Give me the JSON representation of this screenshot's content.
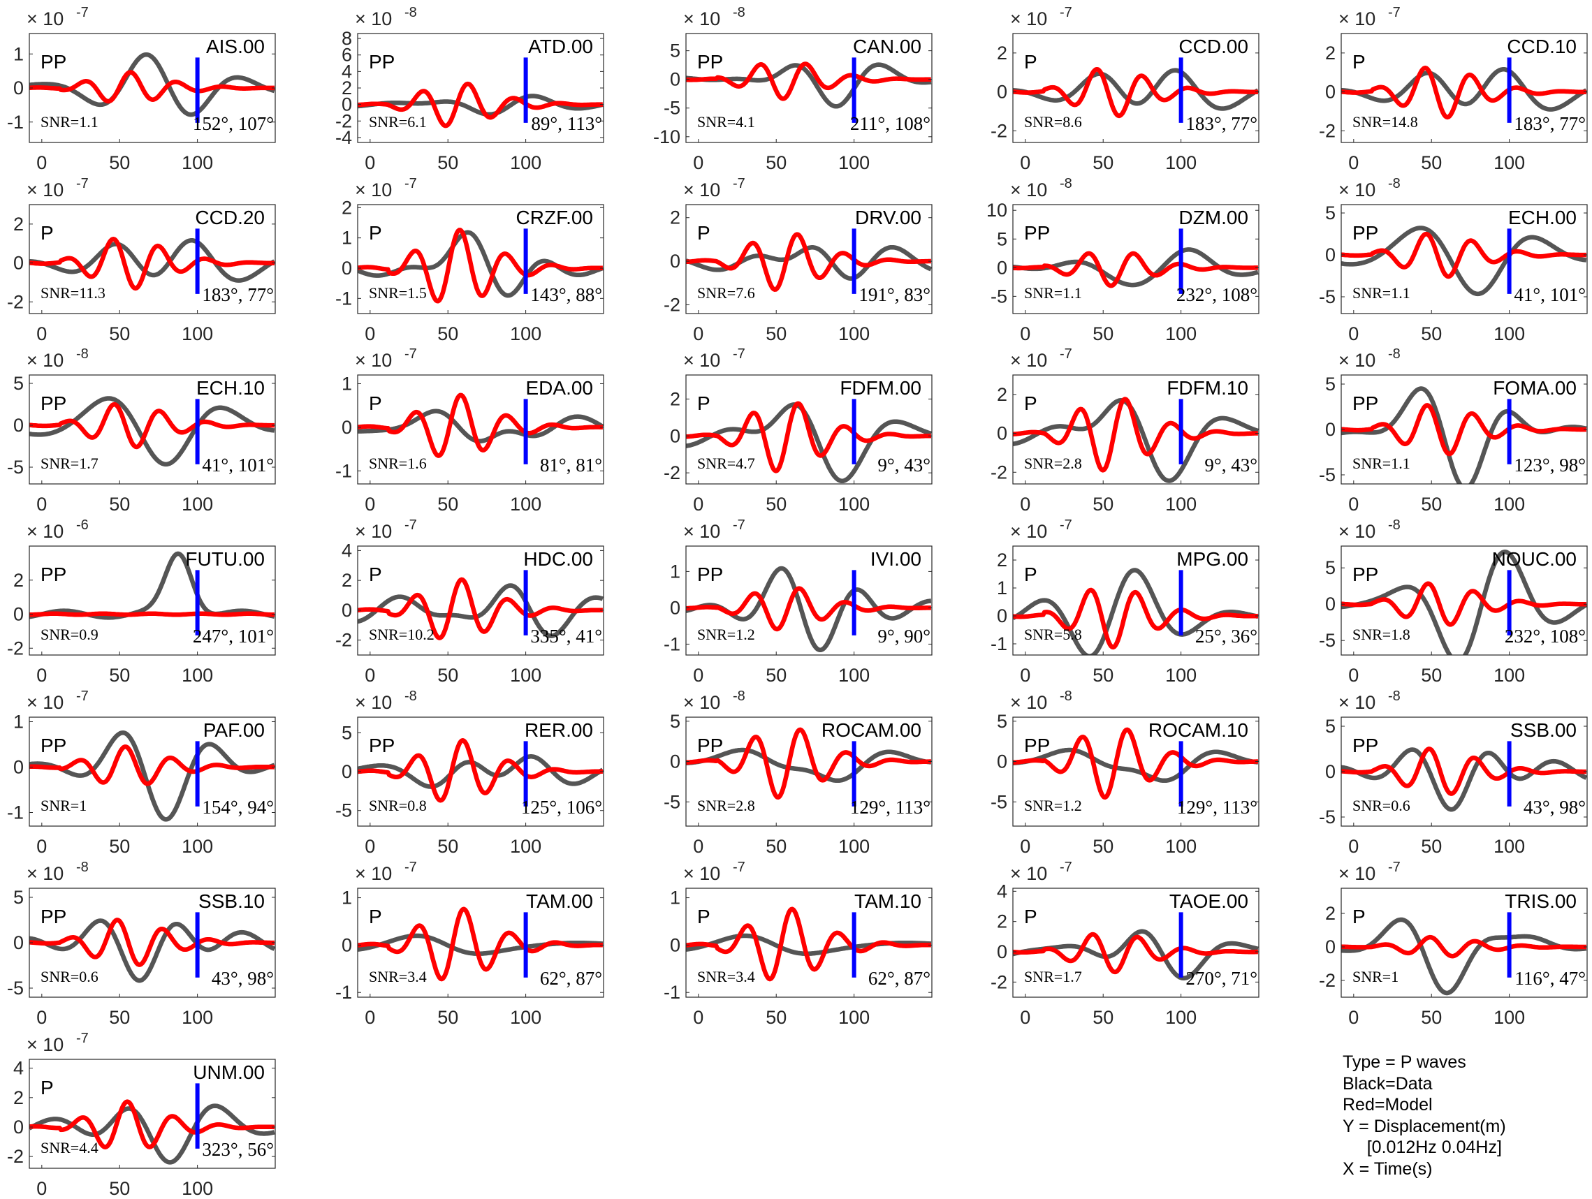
{
  "figure": {
    "legend": {
      "type_line": "Type = P waves",
      "black_line": "Black=Data",
      "red_line": "Red=Model",
      "y_line": "Y = Displacement(m)",
      "band_line": "     [0.012Hz 0.04Hz]",
      "x_line": "X = Time(s)"
    },
    "colors": {
      "data": "#555555",
      "model": "#ff0000",
      "marker": "#0000ff",
      "axis": "#262626"
    }
  },
  "chart_data": [
    {
      "type": "line",
      "station": "AIS.00",
      "phase": "PP",
      "snr": "SNR=1.1",
      "angles": "152°, 107°",
      "exponent": "-7",
      "yticks": [
        -1,
        0,
        1
      ],
      "ylim": [
        -1.6,
        1.6
      ],
      "data_amp": 1.3,
      "model_amp": 0.62,
      "seed": 1
    },
    {
      "type": "line",
      "station": "ATD.00",
      "phase": "PP",
      "snr": "SNR=6.1",
      "angles": "89°, 113°",
      "exponent": "-8",
      "yticks": [
        -4,
        -2,
        0,
        2,
        4,
        6,
        8
      ],
      "ylim": [
        -4.6,
        8.6
      ],
      "data_amp": 4.2,
      "model_amp": 3.6,
      "seed": 2
    },
    {
      "type": "line",
      "station": "CAN.00",
      "phase": "PP",
      "snr": "SNR=4.1",
      "angles": "211°, 108°",
      "exponent": "-8",
      "yticks": [
        -10,
        -5,
        0,
        5
      ],
      "ylim": [
        -11,
        8
      ],
      "data_amp": 6.5,
      "model_amp": 4.5,
      "seed": 3
    },
    {
      "type": "line",
      "station": "CCD.00",
      "phase": "P",
      "snr": "SNR=8.6",
      "angles": "183°, 77°",
      "exponent": "-7",
      "yticks": [
        -2,
        0,
        2
      ],
      "ylim": [
        -2.6,
        3
      ],
      "data_amp": 2.2,
      "model_amp": 1.7,
      "seed": 4
    },
    {
      "type": "line",
      "station": "CCD.10",
      "phase": "P",
      "snr": "SNR=14.8",
      "angles": "183°, 77°",
      "exponent": "-7",
      "yticks": [
        -2,
        0,
        2
      ],
      "ylim": [
        -2.6,
        3
      ],
      "data_amp": 2.3,
      "model_amp": 1.8,
      "seed": 4
    },
    {
      "type": "line",
      "station": "CCD.20",
      "phase": "P",
      "snr": "SNR=11.3",
      "angles": "183°, 77°",
      "exponent": "-7",
      "yticks": [
        -2,
        0,
        2
      ],
      "ylim": [
        -2.6,
        3
      ],
      "data_amp": 2.3,
      "model_amp": 1.8,
      "seed": 4
    },
    {
      "type": "line",
      "station": "CRZF.00",
      "phase": "P",
      "snr": "SNR=1.5",
      "angles": "143°, 88°",
      "exponent": "-7",
      "yticks": [
        -1,
        0,
        1,
        2
      ],
      "ylim": [
        -1.5,
        2.1
      ],
      "data_amp": 1.5,
      "model_amp": 1.7,
      "seed": 6
    },
    {
      "type": "line",
      "station": "DRV.00",
      "phase": "P",
      "snr": "SNR=7.6",
      "angles": "191°, 83°",
      "exponent": "-7",
      "yticks": [
        -2,
        0,
        2
      ],
      "ylim": [
        -2.4,
        2.6
      ],
      "data_amp": 2.2,
      "model_amp": 1.8,
      "seed": 7
    },
    {
      "type": "line",
      "station": "DZM.00",
      "phase": "PP",
      "snr": "SNR=1.1",
      "angles": "232°, 108°",
      "exponent": "-8",
      "yticks": [
        -5,
        0,
        5,
        10
      ],
      "ylim": [
        -8,
        11
      ],
      "data_amp": 7,
      "model_amp": 4.2,
      "seed": 8
    },
    {
      "type": "line",
      "station": "ECH.00",
      "phase": "PP",
      "snr": "SNR=1.1",
      "angles": "41°, 101°",
      "exponent": "-8",
      "yticks": [
        -5,
        0,
        5
      ],
      "ylim": [
        -7,
        6
      ],
      "data_amp": 5.5,
      "model_amp": 3.6,
      "seed": 9
    },
    {
      "type": "line",
      "station": "ECH.10",
      "phase": "PP",
      "snr": "SNR=1.7",
      "angles": "41°, 101°",
      "exponent": "-8",
      "yticks": [
        -5,
        0,
        5
      ],
      "ylim": [
        -7,
        6
      ],
      "data_amp": 5.5,
      "model_amp": 3.6,
      "seed": 9
    },
    {
      "type": "line",
      "station": "EDA.00",
      "phase": "P",
      "snr": "SNR=1.6",
      "angles": "81°, 81°",
      "exponent": "-7",
      "yticks": [
        -1,
        0,
        1
      ],
      "ylim": [
        -1.3,
        1.2
      ],
      "data_amp": 1.0,
      "model_amp": 1.0,
      "seed": 11
    },
    {
      "type": "line",
      "station": "FDFM.00",
      "phase": "P",
      "snr": "SNR=4.7",
      "angles": "9°, 43°",
      "exponent": "-7",
      "yticks": [
        -2,
        0,
        2
      ],
      "ylim": [
        -2.6,
        3.3
      ],
      "data_amp": 2.4,
      "model_amp": 2.6,
      "seed": 12
    },
    {
      "type": "line",
      "station": "FDFM.10",
      "phase": "P",
      "snr": "SNR=2.8",
      "angles": "9°, 43°",
      "exponent": "-7",
      "yticks": [
        -2,
        0,
        2
      ],
      "ylim": [
        -2.6,
        3
      ],
      "data_amp": 2.4,
      "model_amp": 2.6,
      "seed": 12
    },
    {
      "type": "line",
      "station": "FOMA.00",
      "phase": "PP",
      "snr": "SNR=1.1",
      "angles": "123°, 98°",
      "exponent": "-8",
      "yticks": [
        -5,
        0,
        5
      ],
      "ylim": [
        -6,
        6
      ],
      "data_amp": 4.5,
      "model_amp": 3.8,
      "seed": 14
    },
    {
      "type": "line",
      "station": "FUTU.00",
      "phase": "PP",
      "snr": "SNR=0.9",
      "angles": "247°, 101°",
      "exponent": "-6",
      "yticks": [
        -2,
        0,
        2
      ],
      "ylim": [
        -2.4,
        4
      ],
      "data_amp": 3.6,
      "model_amp": 0.1,
      "seed": 15,
      "big_pulse": true
    },
    {
      "type": "line",
      "station": "HDC.00",
      "phase": "P",
      "snr": "SNR=10.2",
      "angles": "335°, 41°",
      "exponent": "-7",
      "yticks": [
        -2,
        0,
        2,
        4
      ],
      "ylim": [
        -3,
        4.3
      ],
      "data_amp": 3.6,
      "model_amp": 2.8,
      "seed": 16
    },
    {
      "type": "line",
      "station": "IVI.00",
      "phase": "PP",
      "snr": "SNR=1.2",
      "angles": "9°, 90°",
      "exponent": "-7",
      "yticks": [
        -1,
        0,
        1
      ],
      "ylim": [
        -1.3,
        1.7
      ],
      "data_amp": 1.3,
      "model_amp": 0.8,
      "seed": 17
    },
    {
      "type": "line",
      "station": "MPG.00",
      "phase": "P",
      "snr": "SNR=5.8",
      "angles": "25°, 36°",
      "exponent": "-7",
      "yticks": [
        -1,
        0,
        1,
        2
      ],
      "ylim": [
        -1.4,
        2.5
      ],
      "data_amp": 2.0,
      "model_amp": 1.5,
      "seed": 18
    },
    {
      "type": "line",
      "station": "NOUC.00",
      "phase": "PP",
      "snr": "SNR=1.8",
      "angles": "232°, 108°",
      "exponent": "-8",
      "yticks": [
        -5,
        0,
        5
      ],
      "ylim": [
        -7,
        8
      ],
      "data_amp": 6,
      "model_amp": 4,
      "seed": 19
    },
    {
      "type": "line",
      "station": "PAF.00",
      "phase": "PP",
      "snr": "SNR=1",
      "angles": "154°, 94°",
      "exponent": "-7",
      "yticks": [
        -1,
        0,
        1
      ],
      "ylim": [
        -1.3,
        1.1
      ],
      "data_amp": 1.0,
      "model_amp": 0.6,
      "seed": 20
    },
    {
      "type": "line",
      "station": "RER.00",
      "phase": "PP",
      "snr": "SNR=0.8",
      "angles": "125°, 106°",
      "exponent": "-8",
      "yticks": [
        -5,
        0,
        5
      ],
      "ylim": [
        -7,
        7
      ],
      "data_amp": 5,
      "model_amp": 5.5,
      "seed": 21
    },
    {
      "type": "line",
      "station": "ROCAM.00",
      "phase": "PP",
      "snr": "SNR=2.8",
      "angles": "129°, 113°",
      "exponent": "-8",
      "yticks": [
        -5,
        0,
        5
      ],
      "ylim": [
        -8,
        5.5
      ],
      "data_amp": 4,
      "model_amp": 6,
      "seed": 22
    },
    {
      "type": "line",
      "station": "ROCAM.10",
      "phase": "PP",
      "snr": "SNR=1.2",
      "angles": "129°, 113°",
      "exponent": "-8",
      "yticks": [
        -5,
        0,
        5
      ],
      "ylim": [
        -8,
        5.5
      ],
      "data_amp": 4,
      "model_amp": 6,
      "seed": 22
    },
    {
      "type": "line",
      "station": "SSB.00",
      "phase": "PP",
      "snr": "SNR=0.6",
      "angles": "43°, 98°",
      "exponent": "-8",
      "yticks": [
        -5,
        0,
        5
      ],
      "ylim": [
        -6,
        6
      ],
      "data_amp": 5,
      "model_amp": 3.5,
      "seed": 24
    },
    {
      "type": "line",
      "station": "SSB.10",
      "phase": "PP",
      "snr": "SNR=0.6",
      "angles": "43°, 98°",
      "exponent": "-8",
      "yticks": [
        -5,
        0,
        5
      ],
      "ylim": [
        -6,
        6
      ],
      "data_amp": 5,
      "model_amp": 3.5,
      "seed": 24
    },
    {
      "type": "line",
      "station": "TAM.00",
      "phase": "P",
      "snr": "SNR=3.4",
      "angles": "62°, 87°",
      "exponent": "-7",
      "yticks": [
        -1,
        0,
        1
      ],
      "ylim": [
        -1.1,
        1.2
      ],
      "data_amp": 1.0,
      "model_amp": 1.05,
      "seed": 26
    },
    {
      "type": "line",
      "station": "TAM.10",
      "phase": "P",
      "snr": "SNR=3.4",
      "angles": "62°, 87°",
      "exponent": "-7",
      "yticks": [
        -1,
        0,
        1
      ],
      "ylim": [
        -1.1,
        1.2
      ],
      "data_amp": 1.0,
      "model_amp": 1.05,
      "seed": 26
    },
    {
      "type": "line",
      "station": "TAOE.00",
      "phase": "P",
      "snr": "SNR=1.7",
      "angles": "270°, 71°",
      "exponent": "-7",
      "yticks": [
        -2,
        0,
        2,
        4
      ],
      "ylim": [
        -3,
        4.2
      ],
      "data_amp": 2.6,
      "model_amp": 1.8,
      "seed": 28
    },
    {
      "type": "line",
      "station": "TRIS.00",
      "phase": "P",
      "snr": "SNR=1",
      "angles": "116°, 47°",
      "exponent": "-7",
      "yticks": [
        -2,
        0,
        2
      ],
      "ylim": [
        -3,
        3.5
      ],
      "data_amp": 2.6,
      "model_amp": 0.8,
      "seed": 29
    },
    {
      "type": "line",
      "station": "UNM.00",
      "phase": "P",
      "snr": "SNR=4.4",
      "angles": "323°, 56°",
      "exponent": "-7",
      "yticks": [
        -2,
        0,
        2,
        4
      ],
      "ylim": [
        -2.8,
        4.6
      ],
      "data_amp": 3.6,
      "model_amp": 2.3,
      "seed": 30
    }
  ],
  "shared_axes": {
    "xticks": [
      0,
      50,
      100
    ],
    "xlim": [
      -8,
      150
    ],
    "marker_time": 100,
    "base": "× 10"
  }
}
